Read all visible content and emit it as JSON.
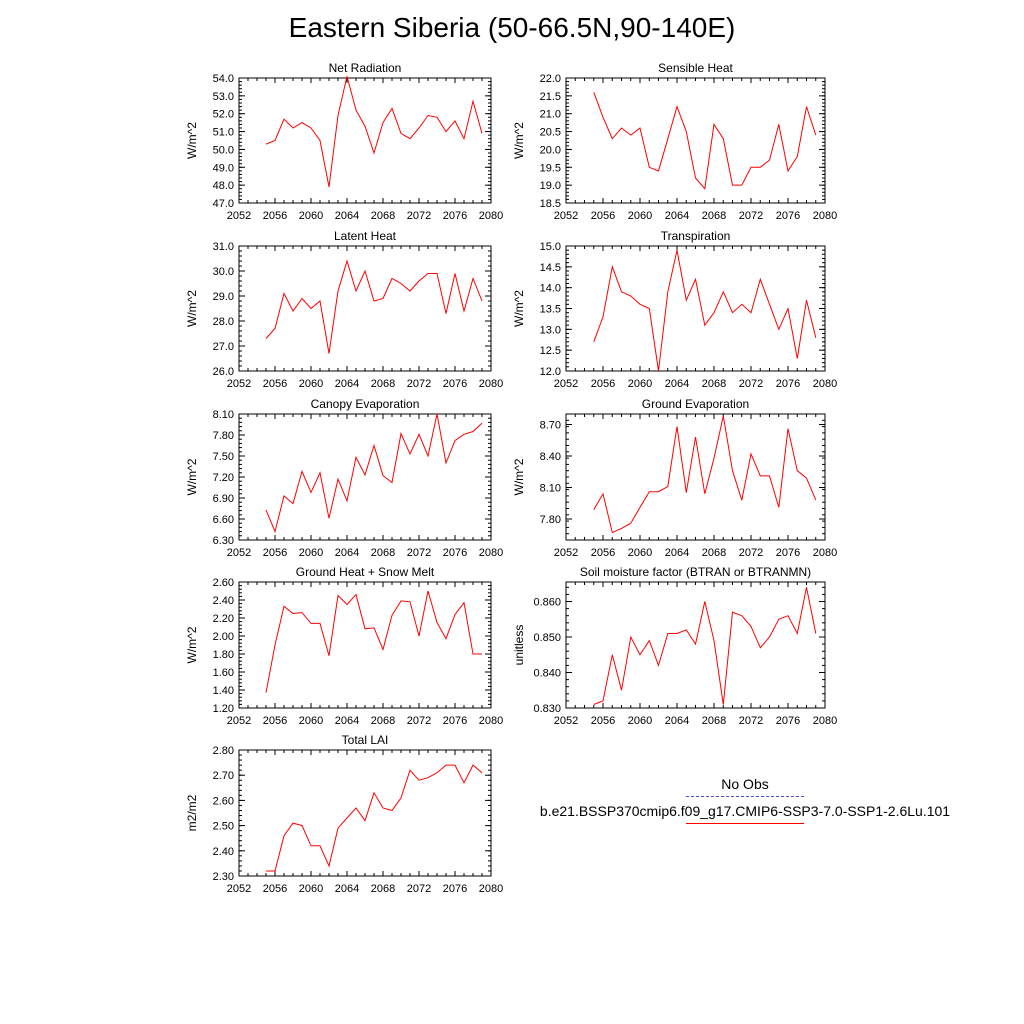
{
  "title": "Eastern Siberia (50-66.5N,90-140E)",
  "colors": {
    "series": "#ff0000",
    "obs": "#4b4bd6",
    "axis": "#000000"
  },
  "legend": {
    "obs_label": "No Obs",
    "run_label": "b.e21.BSSP370cmip6.f09_g17.CMIP6-SSP3-7.0-SSP1-2.6Lu.101"
  },
  "chart_data": [
    {
      "type": "line",
      "title": "Net Radiation",
      "ylabel": "W/m^2",
      "xlabel": "",
      "xlim": [
        2052,
        2080
      ],
      "ylim": [
        47.0,
        54.0
      ],
      "xticks": [
        "2052",
        "2056",
        "2060",
        "2064",
        "2068",
        "2072",
        "2076",
        "2080"
      ],
      "yticks": [
        "47.0",
        "48.0",
        "49.0",
        "50.0",
        "51.0",
        "52.0",
        "53.0",
        "54.0"
      ],
      "x": [
        2055,
        2056,
        2057,
        2058,
        2059,
        2060,
        2061,
        2062,
        2063,
        2064,
        2065,
        2066,
        2067,
        2068,
        2069,
        2070,
        2071,
        2072,
        2073,
        2074,
        2075,
        2076,
        2077,
        2078,
        2079
      ],
      "values": [
        50.3,
        50.5,
        51.7,
        51.2,
        51.5,
        51.2,
        50.5,
        47.9,
        51.9,
        54.1,
        52.2,
        51.3,
        49.8,
        51.5,
        52.3,
        50.9,
        50.6,
        51.2,
        51.9,
        51.8,
        51.0,
        51.6,
        50.6,
        52.7,
        50.9
      ]
    },
    {
      "type": "line",
      "title": "Sensible Heat",
      "ylabel": "W/m^2",
      "xlabel": "",
      "xlim": [
        2052,
        2080
      ],
      "ylim": [
        18.5,
        22.0
      ],
      "xticks": [
        "2052",
        "2056",
        "2060",
        "2064",
        "2068",
        "2072",
        "2076",
        "2080"
      ],
      "yticks": [
        "18.5",
        "19.0",
        "19.5",
        "20.0",
        "20.5",
        "21.0",
        "21.5",
        "22.0"
      ],
      "x": [
        2055,
        2056,
        2057,
        2058,
        2059,
        2060,
        2061,
        2062,
        2063,
        2064,
        2065,
        2066,
        2067,
        2068,
        2069,
        2070,
        2071,
        2072,
        2073,
        2074,
        2075,
        2076,
        2077,
        2078,
        2079
      ],
      "values": [
        21.6,
        20.9,
        20.3,
        20.6,
        20.4,
        20.6,
        19.5,
        19.4,
        20.3,
        21.2,
        20.5,
        19.2,
        18.9,
        20.7,
        20.3,
        19.0,
        19.0,
        19.5,
        19.5,
        19.7,
        20.7,
        19.4,
        19.8,
        21.2,
        20.4
      ]
    },
    {
      "type": "line",
      "title": "Latent Heat",
      "ylabel": "W/m^2",
      "xlabel": "",
      "xlim": [
        2052,
        2080
      ],
      "ylim": [
        26.0,
        31.0
      ],
      "xticks": [
        "2052",
        "2056",
        "2060",
        "2064",
        "2068",
        "2072",
        "2076",
        "2080"
      ],
      "yticks": [
        "26.0",
        "27.0",
        "28.0",
        "29.0",
        "30.0",
        "31.0"
      ],
      "x": [
        2055,
        2056,
        2057,
        2058,
        2059,
        2060,
        2061,
        2062,
        2063,
        2064,
        2065,
        2066,
        2067,
        2068,
        2069,
        2070,
        2071,
        2072,
        2073,
        2074,
        2075,
        2076,
        2077,
        2078,
        2079
      ],
      "values": [
        27.3,
        27.7,
        29.1,
        28.4,
        28.9,
        28.5,
        28.8,
        26.7,
        29.2,
        30.4,
        29.2,
        30.0,
        28.8,
        28.9,
        29.7,
        29.5,
        29.2,
        29.6,
        29.9,
        29.9,
        28.3,
        29.9,
        28.4,
        29.7,
        28.8
      ]
    },
    {
      "type": "line",
      "title": "Transpiration",
      "ylabel": "W/m^2",
      "xlabel": "",
      "xlim": [
        2052,
        2080
      ],
      "ylim": [
        12.0,
        15.0
      ],
      "xticks": [
        "2052",
        "2056",
        "2060",
        "2064",
        "2068",
        "2072",
        "2076",
        "2080"
      ],
      "yticks": [
        "12.0",
        "12.5",
        "13.0",
        "13.5",
        "14.0",
        "14.5",
        "15.0"
      ],
      "x": [
        2055,
        2056,
        2057,
        2058,
        2059,
        2060,
        2061,
        2062,
        2063,
        2064,
        2065,
        2066,
        2067,
        2068,
        2069,
        2070,
        2071,
        2072,
        2073,
        2074,
        2075,
        2076,
        2077,
        2078,
        2079
      ],
      "values": [
        12.7,
        13.3,
        14.5,
        13.9,
        13.8,
        13.6,
        13.5,
        12.0,
        13.9,
        14.9,
        13.7,
        14.2,
        13.1,
        13.4,
        13.9,
        13.4,
        13.6,
        13.4,
        14.2,
        13.6,
        13.0,
        13.5,
        12.3,
        13.7,
        12.8
      ]
    },
    {
      "type": "line",
      "title": "Canopy Evaporation",
      "ylabel": "W/m^2",
      "xlabel": "",
      "xlim": [
        2052,
        2080
      ],
      "ylim": [
        6.3,
        8.1
      ],
      "xticks": [
        "2052",
        "2056",
        "2060",
        "2064",
        "2068",
        "2072",
        "2076",
        "2080"
      ],
      "yticks": [
        "6.30",
        "6.60",
        "6.90",
        "7.20",
        "7.50",
        "7.80",
        "8.10"
      ],
      "x": [
        2055,
        2056,
        2057,
        2058,
        2059,
        2060,
        2061,
        2062,
        2063,
        2064,
        2065,
        2066,
        2067,
        2068,
        2069,
        2070,
        2071,
        2072,
        2073,
        2074,
        2075,
        2076,
        2077,
        2078,
        2079
      ],
      "values": [
        6.73,
        6.42,
        6.93,
        6.82,
        7.28,
        6.98,
        7.26,
        6.61,
        7.17,
        6.86,
        7.48,
        7.23,
        7.65,
        7.22,
        7.12,
        7.82,
        7.53,
        7.81,
        7.5,
        8.1,
        7.4,
        7.72,
        7.81,
        7.85,
        7.97
      ]
    },
    {
      "type": "line",
      "title": "Ground Evaporation",
      "ylabel": "W/m^2",
      "xlabel": "",
      "xlim": [
        2052,
        2080
      ],
      "ylim": [
        7.6,
        8.8
      ],
      "xticks": [
        "2052",
        "2056",
        "2060",
        "2064",
        "2068",
        "2072",
        "2076",
        "2080"
      ],
      "yticks": [
        "7.80",
        "8.10",
        "8.40",
        "8.70"
      ],
      "x": [
        2055,
        2056,
        2057,
        2058,
        2059,
        2060,
        2061,
        2062,
        2063,
        2064,
        2065,
        2066,
        2067,
        2068,
        2069,
        2070,
        2071,
        2072,
        2073,
        2074,
        2075,
        2076,
        2077,
        2078,
        2079
      ],
      "values": [
        7.89,
        8.04,
        7.67,
        7.71,
        7.76,
        7.91,
        8.06,
        8.06,
        8.11,
        8.68,
        8.05,
        8.58,
        8.04,
        8.38,
        8.78,
        8.26,
        7.98,
        8.42,
        8.21,
        8.21,
        7.91,
        8.66,
        8.26,
        8.19,
        7.98
      ]
    },
    {
      "type": "line",
      "title": "Ground Heat + Snow Melt",
      "ylabel": "W/m^2",
      "xlabel": "",
      "xlim": [
        2052,
        2080
      ],
      "ylim": [
        1.2,
        2.6
      ],
      "xticks": [
        "2052",
        "2056",
        "2060",
        "2064",
        "2068",
        "2072",
        "2076",
        "2080"
      ],
      "yticks": [
        "1.20",
        "1.40",
        "1.60",
        "1.80",
        "2.00",
        "2.20",
        "2.40",
        "2.60"
      ],
      "x": [
        2055,
        2056,
        2057,
        2058,
        2059,
        2060,
        2061,
        2062,
        2063,
        2064,
        2065,
        2066,
        2067,
        2068,
        2069,
        2070,
        2071,
        2072,
        2073,
        2074,
        2075,
        2076,
        2077,
        2078,
        2079
      ],
      "values": [
        1.37,
        1.9,
        2.33,
        2.25,
        2.26,
        2.14,
        2.14,
        1.78,
        2.45,
        2.35,
        2.46,
        2.08,
        2.09,
        1.85,
        2.23,
        2.39,
        2.38,
        2.0,
        2.5,
        2.15,
        1.97,
        2.24,
        2.37,
        1.8,
        1.8
      ]
    },
    {
      "type": "line",
      "title": "Soil moisture factor (BTRAN or BTRANMN)",
      "ylabel": "unitless",
      "xlabel": "",
      "xlim": [
        2052,
        2080
      ],
      "ylim": [
        0.83,
        0.8655
      ],
      "xticks": [
        "2052",
        "2056",
        "2060",
        "2064",
        "2068",
        "2072",
        "2076",
        "2080"
      ],
      "yticks": [
        "0.830",
        "0.840",
        "0.850",
        "0.860"
      ],
      "x": [
        2055,
        2056,
        2057,
        2058,
        2059,
        2060,
        2061,
        2062,
        2063,
        2064,
        2065,
        2066,
        2067,
        2068,
        2069,
        2070,
        2071,
        2072,
        2073,
        2074,
        2075,
        2076,
        2077,
        2078,
        2079
      ],
      "values": [
        0.831,
        0.832,
        0.845,
        0.835,
        0.85,
        0.845,
        0.849,
        0.842,
        0.851,
        0.851,
        0.852,
        0.848,
        0.86,
        0.849,
        0.831,
        0.857,
        0.856,
        0.853,
        0.847,
        0.85,
        0.855,
        0.856,
        0.851,
        0.864,
        0.851
      ]
    },
    {
      "type": "line",
      "title": "Total LAI",
      "ylabel": "m2/m2",
      "xlabel": "",
      "xlim": [
        2052,
        2080
      ],
      "ylim": [
        2.3,
        2.8
      ],
      "xticks": [
        "2052",
        "2056",
        "2060",
        "2064",
        "2068",
        "2072",
        "2076",
        "2080"
      ],
      "yticks": [
        "2.30",
        "2.40",
        "2.50",
        "2.60",
        "2.70",
        "2.80"
      ],
      "x": [
        2055,
        2056,
        2057,
        2058,
        2059,
        2060,
        2061,
        2062,
        2063,
        2064,
        2065,
        2066,
        2067,
        2068,
        2069,
        2070,
        2071,
        2072,
        2073,
        2074,
        2075,
        2076,
        2077,
        2078,
        2079
      ],
      "values": [
        2.32,
        2.32,
        2.46,
        2.51,
        2.5,
        2.42,
        2.42,
        2.34,
        2.49,
        2.53,
        2.57,
        2.52,
        2.63,
        2.57,
        2.56,
        2.61,
        2.72,
        2.68,
        2.69,
        2.71,
        2.74,
        2.74,
        2.67,
        2.74,
        2.71
      ]
    }
  ]
}
